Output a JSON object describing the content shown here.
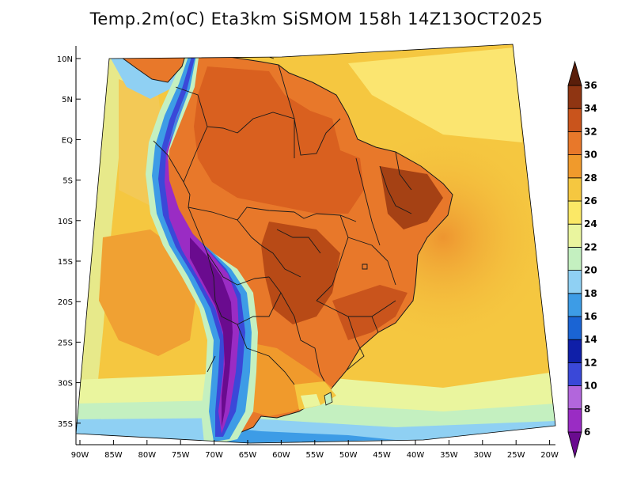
{
  "title": "Temp.2m(oC) Eta3km SiSMOM 158h 14Z13OCT2025",
  "map": {
    "variable": "Temp.2m",
    "unit": "oC",
    "projection": "lambert-conic",
    "lon_range": [
      -90,
      -20
    ],
    "lat_range": [
      -37,
      11
    ],
    "lon_ticks": [
      "90W",
      "85W",
      "80W",
      "75W",
      "70W",
      "65W",
      "60W",
      "55W",
      "50W",
      "45W",
      "40W",
      "35W",
      "30W",
      "25W",
      "20W"
    ],
    "lat_ticks": [
      "10N",
      "5N",
      "EQ",
      "5S",
      "10S",
      "15S",
      "20S",
      "25S",
      "30S",
      "35S"
    ]
  },
  "colorbar": {
    "levels": [
      "6",
      "8",
      "10",
      "12",
      "14",
      "16",
      "18",
      "20",
      "22",
      "24",
      "26",
      "28",
      "30",
      "32",
      "34",
      "36"
    ],
    "colors": [
      "#6a0b8f",
      "#9a2cc4",
      "#b266dc",
      "#3a48d8",
      "#0f1fa8",
      "#1a64d4",
      "#3d9ce6",
      "#8fd0f3",
      "#c4f0c0",
      "#eaf59e",
      "#fbe866",
      "#f5c740",
      "#f09a2c",
      "#e8782a",
      "#c9541c",
      "#8f3512",
      "#5a1e0a"
    ]
  }
}
